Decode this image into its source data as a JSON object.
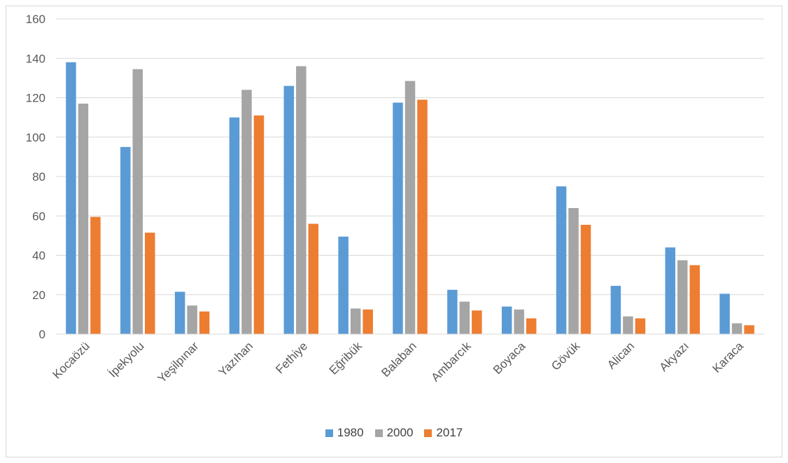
{
  "chart_data": {
    "type": "bar",
    "categories": [
      "Kocaözü",
      "İpekyolu",
      "Yeşilpınar",
      "Yazıhan",
      "Fethiye",
      "Eğribük",
      "Balaban",
      "Ambarcık",
      "Boyaca",
      "Gövük",
      "Alican",
      "Akyazı",
      "Karaca"
    ],
    "series": [
      {
        "name": "1980",
        "color": "#5b9bd5",
        "values": [
          138,
          95,
          21.5,
          110,
          126,
          49.5,
          117.5,
          22.5,
          14,
          75,
          24.5,
          44,
          20.5
        ]
      },
      {
        "name": "2000",
        "color": "#a5a5a5",
        "values": [
          117,
          134.5,
          14.5,
          124,
          136,
          13,
          128.5,
          16.5,
          12.5,
          64,
          9,
          37.5,
          5.5
        ]
      },
      {
        "name": "2017",
        "color": "#ed7d31",
        "values": [
          59.5,
          51.5,
          11.5,
          111,
          56,
          12.5,
          119,
          12,
          8,
          55.5,
          8,
          35,
          4.5
        ]
      }
    ],
    "yticks": [
      "0",
      "20",
      "40",
      "60",
      "80",
      "100",
      "120",
      "140",
      "160"
    ],
    "ylim": [
      0,
      160
    ],
    "grid": true,
    "legend": "bottom",
    "title": "",
    "xlabel": "",
    "ylabel": ""
  }
}
